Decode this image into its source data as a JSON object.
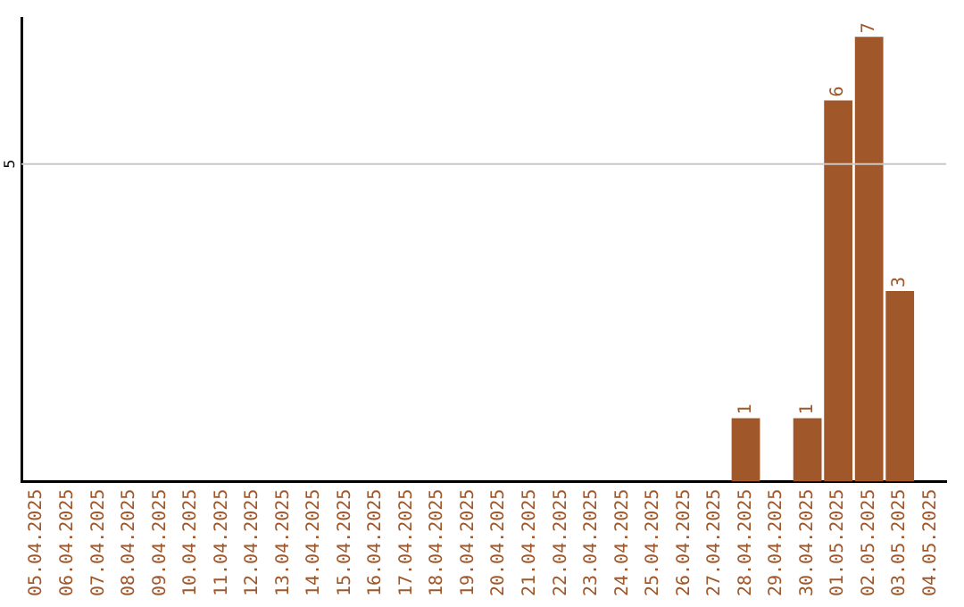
{
  "chart_data": {
    "type": "bar",
    "categories": [
      "05.04.2025",
      "06.04.2025",
      "07.04.2025",
      "08.04.2025",
      "09.04.2025",
      "10.04.2025",
      "11.04.2025",
      "12.04.2025",
      "13.04.2025",
      "14.04.2025",
      "15.04.2025",
      "16.04.2025",
      "17.04.2025",
      "18.04.2025",
      "19.04.2025",
      "20.04.2025",
      "21.04.2025",
      "22.04.2025",
      "23.04.2025",
      "24.04.2025",
      "25.04.2025",
      "26.04.2025",
      "27.04.2025",
      "28.04.2025",
      "29.04.2025",
      "30.04.2025",
      "01.05.2025",
      "02.05.2025",
      "03.05.2025",
      "04.05.2025"
    ],
    "values": [
      null,
      null,
      null,
      null,
      null,
      null,
      null,
      null,
      null,
      null,
      null,
      null,
      null,
      null,
      null,
      null,
      null,
      null,
      null,
      null,
      null,
      null,
      null,
      1,
      null,
      1,
      6,
      7,
      3,
      null
    ],
    "data_labels": true,
    "ylim": [
      0,
      7.3
    ],
    "color": "#a0572a",
    "ref_lines": [
      {
        "axis": "y",
        "value": 5,
        "label": "5",
        "color": "#c8c8c8"
      }
    ],
    "legend": false
  }
}
